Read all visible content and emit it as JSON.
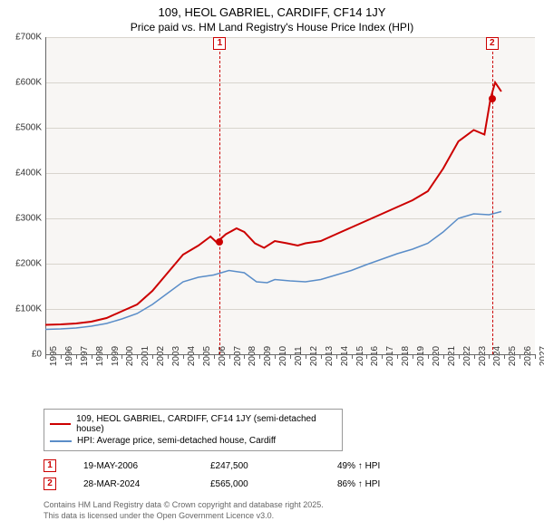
{
  "title_line1": "109, HEOL GABRIEL, CARDIFF, CF14 1JY",
  "title_line2": "Price paid vs. HM Land Registry's House Price Index (HPI)",
  "chart": {
    "type": "line",
    "background_color": "#f8f6f4",
    "grid_color": "#d8d4cd",
    "ylim": [
      0,
      700000
    ],
    "ytick_step": 100000,
    "yticks": [
      "£0",
      "£100K",
      "£200K",
      "£300K",
      "£400K",
      "£500K",
      "£600K",
      "£700K"
    ],
    "xlim": [
      1995,
      2027
    ],
    "xticks": [
      1995,
      1996,
      1997,
      1998,
      1999,
      2000,
      2001,
      2002,
      2003,
      2004,
      2005,
      2006,
      2007,
      2008,
      2009,
      2010,
      2011,
      2012,
      2013,
      2014,
      2015,
      2016,
      2017,
      2018,
      2019,
      2020,
      2021,
      2022,
      2023,
      2024,
      2025,
      2026,
      2027
    ],
    "series": [
      {
        "name": "price_paid",
        "color": "#cc0000",
        "line_width": 2,
        "points": [
          [
            1995,
            65000
          ],
          [
            1996,
            66000
          ],
          [
            1997,
            68000
          ],
          [
            1998,
            72000
          ],
          [
            1999,
            80000
          ],
          [
            2000,
            95000
          ],
          [
            2001,
            110000
          ],
          [
            2002,
            140000
          ],
          [
            2003,
            180000
          ],
          [
            2004,
            220000
          ],
          [
            2005,
            240000
          ],
          [
            2005.8,
            260000
          ],
          [
            2006.2,
            247000
          ],
          [
            2006.8,
            265000
          ],
          [
            2007.5,
            278000
          ],
          [
            2008,
            270000
          ],
          [
            2008.7,
            245000
          ],
          [
            2009.3,
            235000
          ],
          [
            2010,
            250000
          ],
          [
            2010.8,
            245000
          ],
          [
            2011.5,
            240000
          ],
          [
            2012,
            245000
          ],
          [
            2013,
            250000
          ],
          [
            2014,
            265000
          ],
          [
            2015,
            280000
          ],
          [
            2016,
            295000
          ],
          [
            2017,
            310000
          ],
          [
            2018,
            325000
          ],
          [
            2019,
            340000
          ],
          [
            2020,
            360000
          ],
          [
            2021,
            410000
          ],
          [
            2022,
            470000
          ],
          [
            2023,
            495000
          ],
          [
            2023.7,
            485000
          ],
          [
            2024.1,
            565000
          ],
          [
            2024.4,
            600000
          ],
          [
            2024.8,
            580000
          ]
        ]
      },
      {
        "name": "hpi",
        "color": "#5a8dc8",
        "line_width": 1.5,
        "points": [
          [
            1995,
            55000
          ],
          [
            1996,
            56000
          ],
          [
            1997,
            58000
          ],
          [
            1998,
            62000
          ],
          [
            1999,
            68000
          ],
          [
            2000,
            78000
          ],
          [
            2001,
            90000
          ],
          [
            2002,
            110000
          ],
          [
            2003,
            135000
          ],
          [
            2004,
            160000
          ],
          [
            2005,
            170000
          ],
          [
            2006,
            175000
          ],
          [
            2007,
            185000
          ],
          [
            2008,
            180000
          ],
          [
            2008.8,
            160000
          ],
          [
            2009.5,
            158000
          ],
          [
            2010,
            165000
          ],
          [
            2011,
            162000
          ],
          [
            2012,
            160000
          ],
          [
            2013,
            165000
          ],
          [
            2014,
            175000
          ],
          [
            2015,
            185000
          ],
          [
            2016,
            198000
          ],
          [
            2017,
            210000
          ],
          [
            2018,
            222000
          ],
          [
            2019,
            232000
          ],
          [
            2020,
            245000
          ],
          [
            2021,
            270000
          ],
          [
            2022,
            300000
          ],
          [
            2023,
            310000
          ],
          [
            2024,
            308000
          ],
          [
            2024.8,
            315000
          ]
        ]
      }
    ],
    "sale_markers": [
      {
        "num": "1",
        "x": 2006.4,
        "y": 247500
      },
      {
        "num": "2",
        "x": 2024.2,
        "y": 565000
      }
    ]
  },
  "legend": [
    {
      "color": "#cc0000",
      "label": "109, HEOL GABRIEL, CARDIFF, CF14 1JY (semi-detached house)"
    },
    {
      "color": "#5a8dc8",
      "label": "HPI: Average price, semi-detached house, Cardiff"
    }
  ],
  "sales_table": [
    {
      "num": "1",
      "date": "19-MAY-2006",
      "price": "£247,500",
      "vs_hpi": "49% ↑ HPI"
    },
    {
      "num": "2",
      "date": "28-MAR-2024",
      "price": "£565,000",
      "vs_hpi": "86% ↑ HPI"
    }
  ],
  "attribution_line1": "Contains HM Land Registry data © Crown copyright and database right 2025.",
  "attribution_line2": "This data is licensed under the Open Government Licence v3.0."
}
